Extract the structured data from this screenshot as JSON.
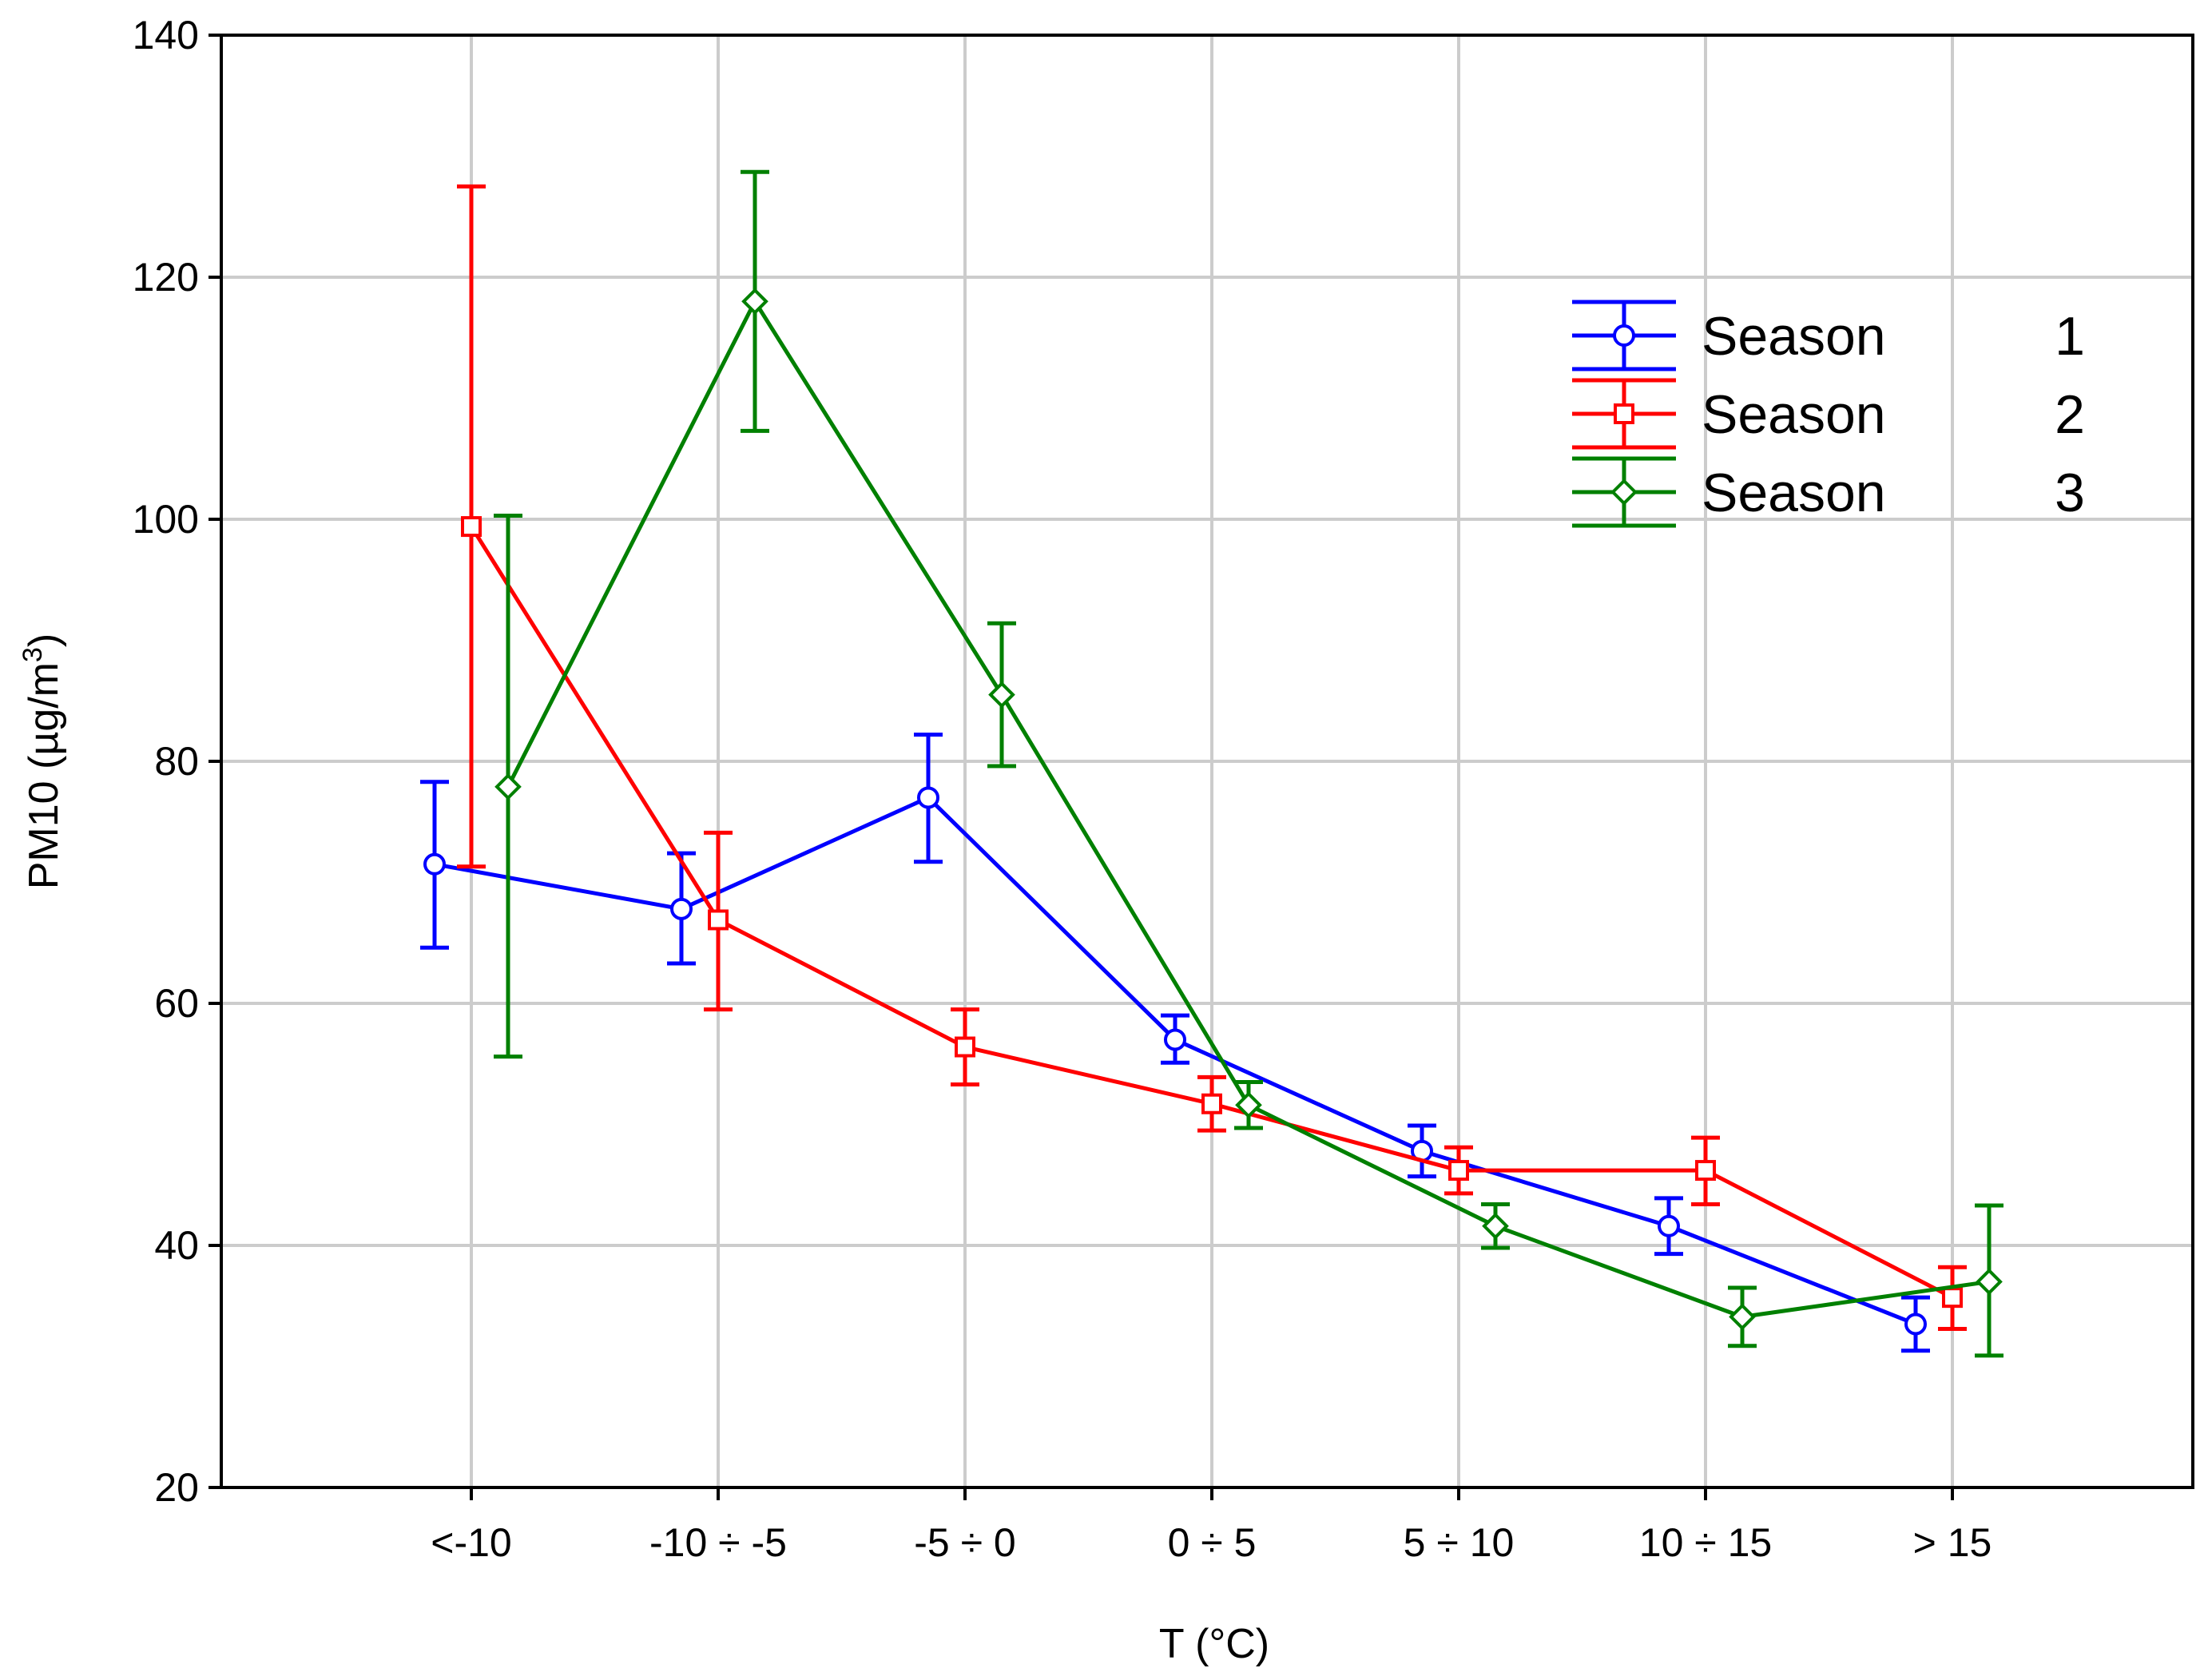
{
  "chart_data": {
    "type": "line",
    "title": "",
    "xlabel": "T (°C)",
    "ylabel_prefix": "PM10 (µg/m",
    "ylabel_sup": "3",
    "ylabel_suffix": ")",
    "ylim": [
      20,
      140
    ],
    "yticks": [
      20,
      40,
      60,
      80,
      100,
      120,
      140
    ],
    "grid": true,
    "legend_position": "top-right",
    "categories": [
      "<-10",
      "-10 ÷ -5",
      "-5 ÷ 0",
      "0 ÷ 5",
      "5 ÷ 10",
      "10 ÷ 15",
      "> 15"
    ],
    "series": [
      {
        "name": "Season",
        "id": "1",
        "color": "#0000ff",
        "marker": "circle",
        "values": [
          71.5,
          67.8,
          77.0,
          57.0,
          47.8,
          41.6,
          33.5
        ],
        "lower": [
          64.6,
          63.3,
          71.7,
          55.1,
          45.7,
          39.3,
          31.3
        ],
        "upper": [
          78.3,
          72.4,
          82.2,
          59.0,
          49.9,
          43.9,
          35.7
        ]
      },
      {
        "name": "Season",
        "id": "2",
        "color": "#ff0000",
        "marker": "square",
        "values": [
          99.4,
          66.9,
          56.4,
          51.7,
          46.2,
          46.2,
          35.7
        ],
        "lower": [
          71.3,
          59.5,
          53.3,
          49.5,
          44.3,
          43.4,
          33.1
        ],
        "upper": [
          127.5,
          74.1,
          59.5,
          53.9,
          48.1,
          48.9,
          38.2
        ]
      },
      {
        "name": "Season",
        "id": "3",
        "color": "#008000",
        "marker": "diamond",
        "values": [
          77.9,
          118.0,
          85.5,
          51.6,
          41.6,
          34.1,
          37.0
        ],
        "lower": [
          55.6,
          107.3,
          79.6,
          49.7,
          39.8,
          31.7,
          30.9
        ],
        "upper": [
          100.3,
          128.7,
          91.4,
          53.5,
          43.4,
          36.5,
          43.3
        ]
      }
    ]
  }
}
